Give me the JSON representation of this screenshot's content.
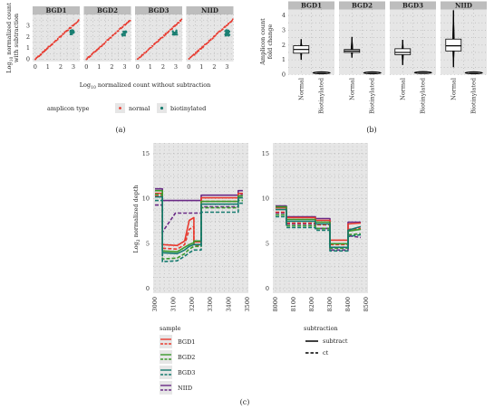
{
  "chart_data": [
    {
      "id": "a",
      "type": "scatter",
      "caption": "(a)",
      "ylabel_line1": "Log",
      "ylabel_sub": "10",
      "ylabel_line1_rest": " normalized count",
      "ylabel_line2": "with subtraction",
      "xlabel_main": "Log",
      "xlabel_sub": "10",
      "xlabel_rest": " normalized count without subtraction",
      "panels": [
        "BGD1",
        "BGD2",
        "BGD3",
        "NIID"
      ],
      "x_ticks": [
        "0",
        "1",
        "2",
        "3"
      ],
      "y_ticks": [
        "0",
        "1",
        "2",
        "3"
      ],
      "xlim": [
        -0.2,
        3.5
      ],
      "ylim": [
        -0.2,
        4.0
      ],
      "legend_title": "amplicon type",
      "series": [
        {
          "name": "normal",
          "color": "#e8392e"
        },
        {
          "name": "biotinylated",
          "color": "#1a7f72"
        }
      ],
      "approx_data": {
        "normal_diagonal_range": [
          0.0,
          3.45
        ],
        "biotinylated_clusters": [
          {
            "panel": "BGD1",
            "x": [
              2.75,
              3.05
            ],
            "y": [
              2.2,
              2.6
            ]
          },
          {
            "panel": "BGD2",
            "x": [
              2.8,
              3.15
            ],
            "y": [
              2.1,
              2.5
            ]
          },
          {
            "panel": "BGD3",
            "x": [
              2.75,
              3.1
            ],
            "y": [
              2.15,
              2.6
            ]
          },
          {
            "panel": "NIID",
            "x": [
              2.85,
              3.2
            ],
            "y": [
              2.1,
              2.6
            ]
          }
        ]
      }
    },
    {
      "id": "b",
      "type": "violin+box",
      "caption": "(b)",
      "ylabel_line1": "Amplicon count",
      "ylabel_line2": "fold change",
      "panels": [
        "BGD1",
        "BGD2",
        "BGD3",
        "NIID"
      ],
      "categories": [
        "Normal",
        "Biotinylated"
      ],
      "y_ticks": [
        "0",
        "1",
        "2",
        "3",
        "4"
      ],
      "ylim": [
        0,
        4.4
      ],
      "boxes": [
        {
          "panel": "BGD1",
          "normal": {
            "q1": 1.45,
            "median": 1.7,
            "q3": 1.95,
            "min": 1.0,
            "max": 2.4
          },
          "biotinylated": {
            "median": 0.12,
            "min": 0.05,
            "max": 0.25
          }
        },
        {
          "panel": "BGD2",
          "normal": {
            "q1": 1.5,
            "median": 1.6,
            "q3": 1.7,
            "min": 1.15,
            "max": 2.55
          },
          "biotinylated": {
            "median": 0.12,
            "min": 0.05,
            "max": 0.22
          }
        },
        {
          "panel": "BGD3",
          "normal": {
            "q1": 1.35,
            "median": 1.5,
            "q3": 1.75,
            "min": 0.65,
            "max": 2.35
          },
          "biotinylated": {
            "median": 0.14,
            "min": 0.06,
            "max": 0.28
          }
        },
        {
          "panel": "NIID",
          "normal": {
            "q1": 1.6,
            "median": 1.95,
            "q3": 2.4,
            "min": 0.5,
            "max": 4.35
          },
          "biotinylated": {
            "median": 0.12,
            "min": 0.04,
            "max": 0.3
          }
        }
      ]
    },
    {
      "id": "c",
      "type": "line",
      "caption": "(c)",
      "ylabel_main": "Log",
      "ylabel_sub": "2",
      "ylabel_rest": " normalized depth",
      "y_ticks": [
        "0",
        "5",
        "10",
        "15"
      ],
      "ylim": [
        -0.5,
        16.2
      ],
      "left_panel": {
        "x_ticks": [
          "3000",
          "3100",
          "3200",
          "3300",
          "3400",
          "3500"
        ],
        "xlim": [
          2990,
          3505
        ]
      },
      "right_panel": {
        "x_ticks": [
          "8000",
          "8100",
          "8200",
          "8300",
          "8400",
          "8500"
        ],
        "xlim": [
          7985,
          8510
        ]
      },
      "legend_sample_title": "sample",
      "legend_sub_title": "subtraction",
      "samples": [
        {
          "name": "BGD1",
          "color": "#e8392e"
        },
        {
          "name": "BGD2",
          "color": "#3a9a2c"
        },
        {
          "name": "BGD3",
          "color": "#147a6e"
        },
        {
          "name": "NIID",
          "color": "#6a2a86"
        }
      ],
      "line_types": [
        {
          "name": "subtract",
          "dash": "none"
        },
        {
          "name": "ct",
          "dash": "4 2"
        }
      ],
      "series_left": [
        {
          "sample": "NIID",
          "type": "subtract",
          "pts": [
            [
              3000,
              11.1
            ],
            [
              3040,
              11.1
            ],
            [
              3040,
              9.8
            ],
            [
              3250,
              9.8
            ],
            [
              3250,
              10.4
            ],
            [
              3450,
              10.4
            ],
            [
              3450,
              10.9
            ],
            [
              3475,
              10.9
            ]
          ]
        },
        {
          "sample": "NIID",
          "type": "ct",
          "pts": [
            [
              3000,
              9.3
            ],
            [
              3040,
              9.3
            ],
            [
              3040,
              6.3
            ],
            [
              3110,
              8.4
            ],
            [
              3250,
              8.4
            ],
            [
              3250,
              9.1
            ],
            [
              3450,
              9.1
            ],
            [
              3450,
              10.5
            ],
            [
              3475,
              10.5
            ]
          ]
        },
        {
          "sample": "BGD1",
          "type": "subtract",
          "pts": [
            [
              3000,
              10.6
            ],
            [
              3040,
              10.6
            ],
            [
              3040,
              4.9
            ],
            [
              3120,
              4.8
            ],
            [
              3160,
              5.3
            ],
            [
              3185,
              7.6
            ],
            [
              3210,
              7.9
            ],
            [
              3210,
              5.2
            ],
            [
              3250,
              5.2
            ],
            [
              3250,
              10.1
            ],
            [
              3450,
              10.1
            ],
            [
              3450,
              10.6
            ],
            [
              3475,
              10.6
            ]
          ]
        },
        {
          "sample": "BGD1",
          "type": "ct",
          "pts": [
            [
              3000,
              10.3
            ],
            [
              3040,
              10.3
            ],
            [
              3040,
              4.5
            ],
            [
              3120,
              4.4
            ],
            [
              3160,
              4.9
            ],
            [
              3185,
              6.6
            ],
            [
              3210,
              6.9
            ],
            [
              3210,
              4.8
            ],
            [
              3250,
              4.8
            ],
            [
              3250,
              9.7
            ],
            [
              3450,
              9.7
            ],
            [
              3450,
              10.3
            ],
            [
              3475,
              10.3
            ]
          ]
        },
        {
          "sample": "BGD2",
          "type": "subtract",
          "pts": [
            [
              3000,
              10.9
            ],
            [
              3040,
              10.9
            ],
            [
              3040,
              4.2
            ],
            [
              3120,
              4.1
            ],
            [
              3160,
              4.6
            ],
            [
              3185,
              4.9
            ],
            [
              3210,
              5.1
            ],
            [
              3210,
              5.3
            ],
            [
              3250,
              5.3
            ],
            [
              3250,
              9.7
            ],
            [
              3450,
              9.7
            ],
            [
              3450,
              10.3
            ],
            [
              3475,
              10.3
            ]
          ]
        },
        {
          "sample": "BGD2",
          "type": "ct",
          "pts": [
            [
              3000,
              10.5
            ],
            [
              3040,
              10.5
            ],
            [
              3040,
              3.3
            ],
            [
              3120,
              3.4
            ],
            [
              3160,
              3.9
            ],
            [
              3185,
              4.4
            ],
            [
              3210,
              4.7
            ],
            [
              3250,
              4.7
            ],
            [
              3250,
              9.0
            ],
            [
              3450,
              9.0
            ],
            [
              3450,
              9.8
            ],
            [
              3475,
              9.8
            ]
          ]
        },
        {
          "sample": "BGD3",
          "type": "subtract",
          "pts": [
            [
              3000,
              10.2
            ],
            [
              3040,
              10.2
            ],
            [
              3040,
              4.0
            ],
            [
              3120,
              3.9
            ],
            [
              3160,
              4.3
            ],
            [
              3185,
              4.7
            ],
            [
              3210,
              4.9
            ],
            [
              3250,
              4.9
            ],
            [
              3250,
              9.4
            ],
            [
              3450,
              9.4
            ],
            [
              3450,
              10.1
            ],
            [
              3475,
              10.1
            ]
          ]
        },
        {
          "sample": "BGD3",
          "type": "ct",
          "pts": [
            [
              3000,
              9.8
            ],
            [
              3040,
              9.8
            ],
            [
              3040,
              3.0
            ],
            [
              3120,
              3.1
            ],
            [
              3160,
              3.6
            ],
            [
              3185,
              4.0
            ],
            [
              3210,
              4.3
            ],
            [
              3250,
              4.3
            ],
            [
              3250,
              8.5
            ],
            [
              3450,
              8.5
            ],
            [
              3450,
              9.5
            ],
            [
              3475,
              9.5
            ]
          ]
        }
      ],
      "series_right": [
        {
          "sample": "NIID",
          "type": "subtract",
          "pts": [
            [
              8000,
              9.2
            ],
            [
              8060,
              9.2
            ],
            [
              8060,
              8.0
            ],
            [
              8220,
              8.0
            ],
            [
              8220,
              7.8
            ],
            [
              8300,
              7.8
            ],
            [
              8300,
              5.0
            ],
            [
              8400,
              5.0
            ],
            [
              8400,
              7.4
            ],
            [
              8470,
              7.4
            ]
          ]
        },
        {
          "sample": "NIID",
          "type": "ct",
          "pts": [
            [
              8000,
              8.4
            ],
            [
              8060,
              8.4
            ],
            [
              8060,
              7.2
            ],
            [
              8220,
              7.2
            ],
            [
              8220,
              6.7
            ],
            [
              8300,
              6.7
            ],
            [
              8300,
              4.3
            ],
            [
              8400,
              4.3
            ],
            [
              8400,
              5.9
            ],
            [
              8470,
              5.7
            ]
          ]
        },
        {
          "sample": "BGD1",
          "type": "subtract",
          "pts": [
            [
              8000,
              9.0
            ],
            [
              8060,
              9.0
            ],
            [
              8060,
              7.9
            ],
            [
              8220,
              7.9
            ],
            [
              8220,
              7.6
            ],
            [
              8300,
              7.6
            ],
            [
              8300,
              5.4
            ],
            [
              8400,
              5.4
            ],
            [
              8400,
              7.2
            ],
            [
              8470,
              7.3
            ]
          ]
        },
        {
          "sample": "BGD1",
          "type": "ct",
          "pts": [
            [
              8000,
              8.5
            ],
            [
              8060,
              8.5
            ],
            [
              8060,
              7.3
            ],
            [
              8220,
              7.3
            ],
            [
              8220,
              7.1
            ],
            [
              8300,
              7.1
            ],
            [
              8300,
              4.9
            ],
            [
              8400,
              4.9
            ],
            [
              8400,
              6.6
            ],
            [
              8470,
              6.7
            ]
          ]
        },
        {
          "sample": "BGD2",
          "type": "subtract",
          "pts": [
            [
              8000,
              9.1
            ],
            [
              8060,
              9.1
            ],
            [
              8060,
              7.7
            ],
            [
              8220,
              7.7
            ],
            [
              8220,
              7.4
            ],
            [
              8300,
              7.4
            ],
            [
              8300,
              5.0
            ],
            [
              8400,
              5.0
            ],
            [
              8400,
              6.4
            ],
            [
              8470,
              6.6
            ]
          ]
        },
        {
          "sample": "BGD2",
          "type": "ct",
          "pts": [
            [
              8000,
              8.2
            ],
            [
              8060,
              8.2
            ],
            [
              8060,
              7.0
            ],
            [
              8220,
              7.0
            ],
            [
              8220,
              6.7
            ],
            [
              8300,
              6.7
            ],
            [
              8300,
              4.5
            ],
            [
              8400,
              4.5
            ],
            [
              8400,
              6.0
            ],
            [
              8470,
              6.1
            ]
          ]
        },
        {
          "sample": "BGD3",
          "type": "subtract",
          "pts": [
            [
              8000,
              8.8
            ],
            [
              8060,
              8.8
            ],
            [
              8060,
              7.5
            ],
            [
              8220,
              7.5
            ],
            [
              8220,
              7.2
            ],
            [
              8300,
              7.2
            ],
            [
              8300,
              4.6
            ],
            [
              8400,
              4.6
            ],
            [
              8400,
              6.5
            ],
            [
              8470,
              6.9
            ]
          ]
        },
        {
          "sample": "BGD3",
          "type": "ct",
          "pts": [
            [
              8000,
              8.0
            ],
            [
              8060,
              8.0
            ],
            [
              8060,
              6.8
            ],
            [
              8220,
              6.8
            ],
            [
              8220,
              6.5
            ],
            [
              8300,
              6.5
            ],
            [
              8300,
              4.2
            ],
            [
              8400,
              4.2
            ],
            [
              8400,
              5.8
            ],
            [
              8470,
              6.0
            ]
          ]
        }
      ]
    }
  ]
}
